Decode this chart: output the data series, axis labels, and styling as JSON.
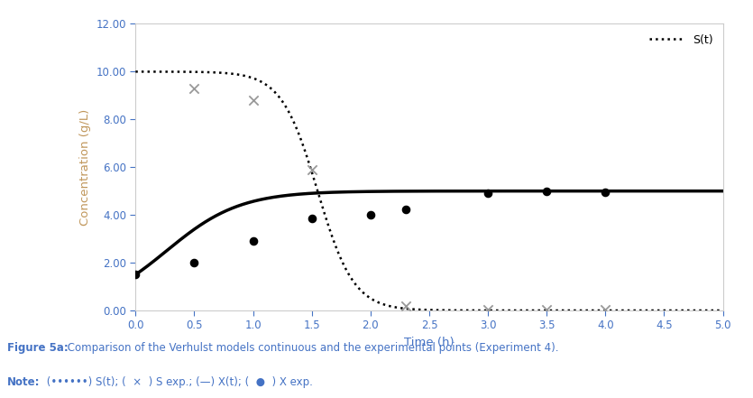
{
  "xlabel": "Time (h)",
  "ylabel": "Concentration (g/L)",
  "ylabel_color": "#C0965A",
  "xlabel_color": "#4472C4",
  "xlim": [
    0,
    5.0
  ],
  "ylim": [
    0,
    12.0
  ],
  "xticks": [
    0.0,
    0.5,
    1.0,
    1.5,
    2.0,
    2.5,
    3.0,
    3.5,
    4.0,
    4.5,
    5.0
  ],
  "yticks": [
    0.0,
    2.0,
    4.0,
    6.0,
    8.0,
    10.0,
    12.0
  ],
  "S_exp_x": [
    0.5,
    1.0,
    1.5,
    2.3,
    3.0,
    3.5,
    4.0
  ],
  "S_exp_y": [
    9.3,
    8.8,
    5.9,
    0.2,
    0.05,
    0.05,
    0.05
  ],
  "X_exp_x": [
    0.0,
    0.5,
    1.0,
    1.5,
    2.0,
    2.3,
    3.0,
    3.5,
    4.0
  ],
  "X_exp_y": [
    1.5,
    2.0,
    2.9,
    3.85,
    4.0,
    4.25,
    4.9,
    5.0,
    4.95
  ],
  "legend_label_S": "S(t)",
  "background_color": "#ffffff",
  "plot_bg_color": "#ffffff",
  "S_line_color": "#000000",
  "X_line_color": "#000000",
  "S_exp_color": "#999999",
  "X_exp_color": "#000000",
  "S_curve_S0": 10.0,
  "S_curve_k": 6.5,
  "S_curve_t_mid": 1.55,
  "X_curve_Xmax": 5.0,
  "X_curve_X0": 1.5,
  "X_curve_k": 3.2,
  "caption_bold": "Figure 5a:",
  "caption_rest": " Comparison of the Verhulst models continuous and the experimental points (Experiment 4).",
  "note_label": "Note:",
  "note_rest": " (••••••) S(t); (  ×  ) S exp.; (—) X(t); (  ●  ) X exp.",
  "caption_color": "#4472C4",
  "spine_color": "#cccccc",
  "tick_color": "#4472C4",
  "tick_label_color": "#4472C4"
}
